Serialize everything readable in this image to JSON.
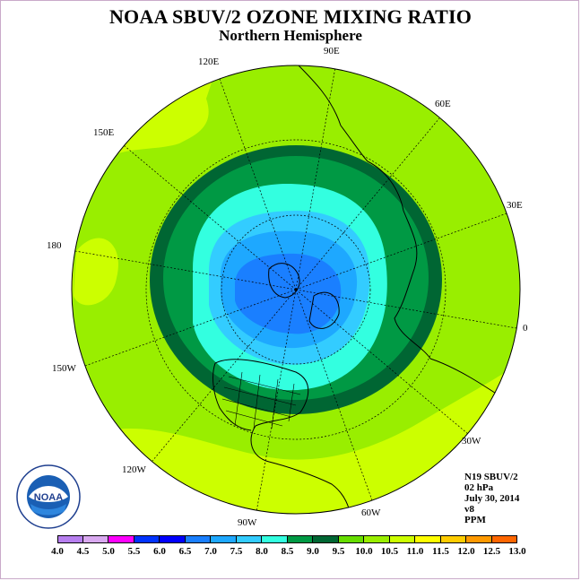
{
  "title": "NOAA SBUV/2 OZONE MIXING RATIO",
  "subtitle": "Northern Hemisphere",
  "longitude_labels": {
    "lon_90e": "90E",
    "lon_60e": "60E",
    "lon_30e": "30E",
    "lon_0": "0",
    "lon_30w": "30W",
    "lon_60w": "60W",
    "lon_90w": "90W",
    "lon_120w": "120W",
    "lon_150w": "150W",
    "lon_180": "180",
    "lon_150e": "150E",
    "lon_120e": "120E"
  },
  "info": {
    "satellite": "N19 SBUV/2",
    "level": "02 hPa",
    "date": "July 30, 2014",
    "version": "v8",
    "units": "PPM"
  },
  "logo_text": "NOAA",
  "colorbar": {
    "labels": [
      "4.0",
      "4.5",
      "5.0",
      "5.5",
      "6.0",
      "6.5",
      "7.0",
      "7.5",
      "8.0",
      "8.5",
      "9.0",
      "9.5",
      "10.0",
      "10.5",
      "11.0",
      "11.5",
      "12.0",
      "12.5",
      "13.0"
    ],
    "colors": [
      "#b77fef",
      "#d9a9f0",
      "#ff00ff",
      "#0033ff",
      "#0000ff",
      "#1a7fff",
      "#1ea8ff",
      "#33ccff",
      "#33ffe0",
      "#009944",
      "#006633",
      "#66dd00",
      "#99ee00",
      "#ccff00",
      "#ffff00",
      "#ffcc00",
      "#ff9900",
      "#ff6600",
      "#ff0000",
      "#8b5a2b"
    ]
  }
}
